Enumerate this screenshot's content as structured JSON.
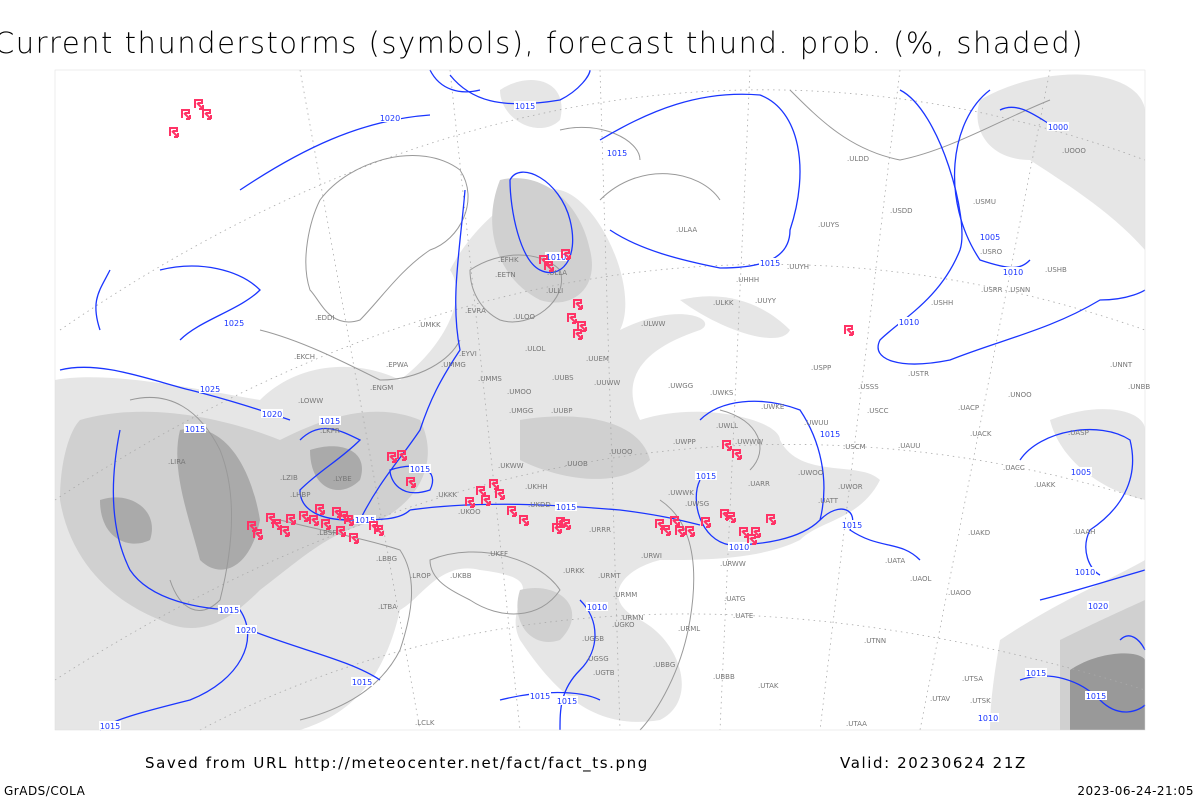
{
  "title": "Current thunderstorms (symbols), forecast thund. prob. (%, shaded)",
  "footer": {
    "source": "Saved from URL http://meteocenter.net/fact/fact_ts.png",
    "valid": "Valid: 20230624 21Z",
    "software": "GrADS/COLA",
    "timestamp": "2023-06-24-21:05"
  },
  "colors": {
    "isobar": "#1a35ff",
    "thunderstorm_symbol": "#ff3366",
    "shading_light": "#e4e4e4",
    "shading_mid": "#cfcfcf",
    "shading_dark": "#a8a8a8",
    "coastline": "#999999"
  },
  "icons": {
    "thunderstorm": "thunderstorm-symbol"
  },
  "isobar_labels": [
    "1020",
    "1015",
    "1015",
    "1010",
    "1015",
    "1010",
    "1025",
    "1025",
    "1020",
    "1015",
    "1015",
    "1015",
    "1015",
    "1015",
    "1010",
    "1015",
    "1015",
    "1015",
    "1010",
    "1000",
    "1005",
    "1005",
    "1010",
    "1015",
    "1020",
    "1015",
    "1010",
    "1015",
    "1015",
    "1015",
    "1020",
    "1015",
    "1010",
    "1015"
  ],
  "stations": [
    ".EFHK",
    ".EETN",
    ".ULLI",
    ".EVRA",
    ".ULOO",
    ".ULOL",
    ".UUEM",
    ".UUWW",
    ".ULAA",
    ".ULKK",
    ".UUYY",
    ".ULWW",
    ".UUYH",
    ".UUYS",
    ".ULDD",
    ".USDD",
    ".USMU",
    ".USRO",
    ".USRR",
    ".USNN",
    ".USHH",
    ".USPP",
    ".USSS",
    ".USTR",
    ".USCC",
    ".UACP",
    ".UNOO",
    ".UNNT",
    ".UNBB",
    ".UACK",
    ".UASP",
    ".UACC",
    ".UAKK",
    ".UAAH",
    ".UAKD",
    ".UATA",
    ".UAOL",
    ".UAOO",
    ".UATT",
    ".UWOR",
    ".USCM",
    ".UAUU",
    ".UWOO",
    ".UWKE",
    ".UWUU",
    ".UWKS",
    ".UWWW",
    ".UWLL",
    ".UWPP",
    ".UWGG",
    ".UARR",
    ".UWSG",
    ".UWWK",
    ".URWW",
    ".URWI",
    ".URMT",
    ".URMM",
    ".URMN",
    ".URML",
    ".UATE",
    ".UATG",
    ".UTNN",
    ".UTSA",
    ".UTAV",
    ".UTSK",
    ".UTAK",
    ".UBBB",
    ".UTAA",
    ".UGSB",
    ".UGKO",
    ".UGSG",
    ".UGTB",
    ".UBBG",
    ".URKK",
    ".URRR",
    ".UKFF",
    ".UKOO",
    ".UKKK",
    ".UKDD",
    ".UKHH",
    ".UUOB",
    ".UUOO",
    ".UMGG",
    ".UUBP",
    ".UUBS",
    ".UMMS",
    ".UMOO",
    ".UMMG",
    ".EYVI",
    ".UMKK",
    ".EPWA",
    ".EDDI",
    ".EKCH",
    ".LOWW",
    ".LKPR",
    ".LYBE",
    ".LBSF",
    ".LBBG",
    ".LIRA",
    ".LTBA",
    ".LCLK",
    ".UOOO",
    ".UHHH",
    ".USHB",
    ".ULLA",
    ".UKBB",
    ".UKWW",
    ".LHBP",
    ".LZIB",
    ".LROP",
    ".ENGM"
  ]
}
